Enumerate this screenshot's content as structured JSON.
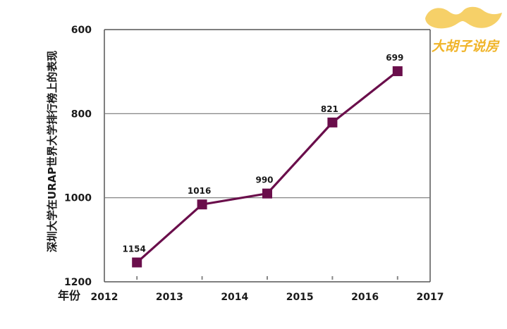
{
  "chart_data": {
    "type": "line",
    "x": [
      2012.5,
      2013.5,
      2014.5,
      2015.5,
      2016.5
    ],
    "series": [
      {
        "values": [
          1154,
          1016,
          990,
          821,
          699
        ],
        "data_labels": [
          "1154",
          "1016",
          "990",
          "821",
          "699"
        ],
        "color": "#6a0e4b",
        "marker": "square"
      }
    ],
    "ylabel": "深圳大学在URAP世界大学排行榜上的表现",
    "xlabel": "年份",
    "x_ticks": [
      "2012",
      "2013",
      "2014",
      "2015",
      "2016",
      "2017"
    ],
    "y_ticks": [
      "600",
      "800",
      "1000",
      "1200"
    ],
    "ylim": [
      600,
      1200
    ],
    "xlim": [
      2012,
      2017
    ],
    "y_inverted": true,
    "grid": "horizontal"
  },
  "logo": {
    "text": "大胡子说房",
    "color": "#f0b429",
    "icon": "mustache-icon"
  }
}
